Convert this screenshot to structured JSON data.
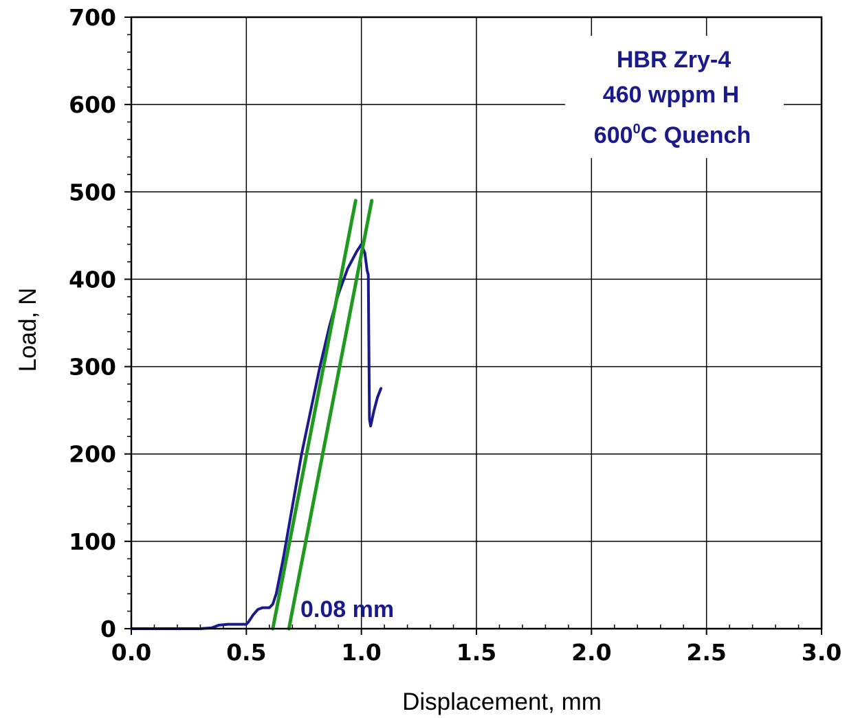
{
  "chart_data": {
    "type": "line",
    "xlabel": "Displacement, mm",
    "ylabel": "Load, N",
    "xlim": [
      0,
      3.0
    ],
    "ylim": [
      0,
      700
    ],
    "x_ticks": [
      "0.0",
      "0.5",
      "1.0",
      "1.5",
      "2.0",
      "2.5",
      "3.0"
    ],
    "y_ticks": [
      "0",
      "100",
      "200",
      "300",
      "400",
      "500",
      "600",
      "700"
    ],
    "grid": true,
    "annotation_lines": [
      "HBR Zry-4",
      "460 wppm H",
      "600",
      "0",
      "C Quench"
    ],
    "offset_label": "0.08 mm",
    "colors": {
      "data": "#1a1a8c",
      "offset_lines": "#1f9a1f",
      "annotation": "#1a1a8c"
    },
    "series": [
      {
        "color": "#1a1a8c",
        "x": [
          0.0,
          0.1,
          0.2,
          0.3,
          0.35,
          0.38,
          0.42,
          0.5,
          0.51,
          0.53,
          0.55,
          0.57,
          0.6,
          0.615,
          0.63,
          0.66,
          0.7,
          0.74,
          0.78,
          0.82,
          0.86,
          0.9,
          0.94,
          0.98,
          1.0,
          1.015,
          1.025,
          1.03,
          1.035,
          1.04,
          1.055,
          1.07,
          1.085
        ],
        "y": [
          0,
          0,
          0,
          0,
          1,
          4,
          5,
          5,
          8,
          16,
          22,
          24,
          24,
          28,
          40,
          80,
          140,
          200,
          250,
          300,
          345,
          383,
          412,
          432,
          440,
          430,
          410,
          405,
          240,
          232,
          250,
          265,
          275
        ]
      },
      {
        "color": "#1f9a1f",
        "x": [
          0.615,
          0.975
        ],
        "y": [
          0,
          490
        ]
      },
      {
        "color": "#1f9a1f",
        "x": [
          0.685,
          1.045
        ],
        "y": [
          0,
          490
        ]
      }
    ]
  }
}
